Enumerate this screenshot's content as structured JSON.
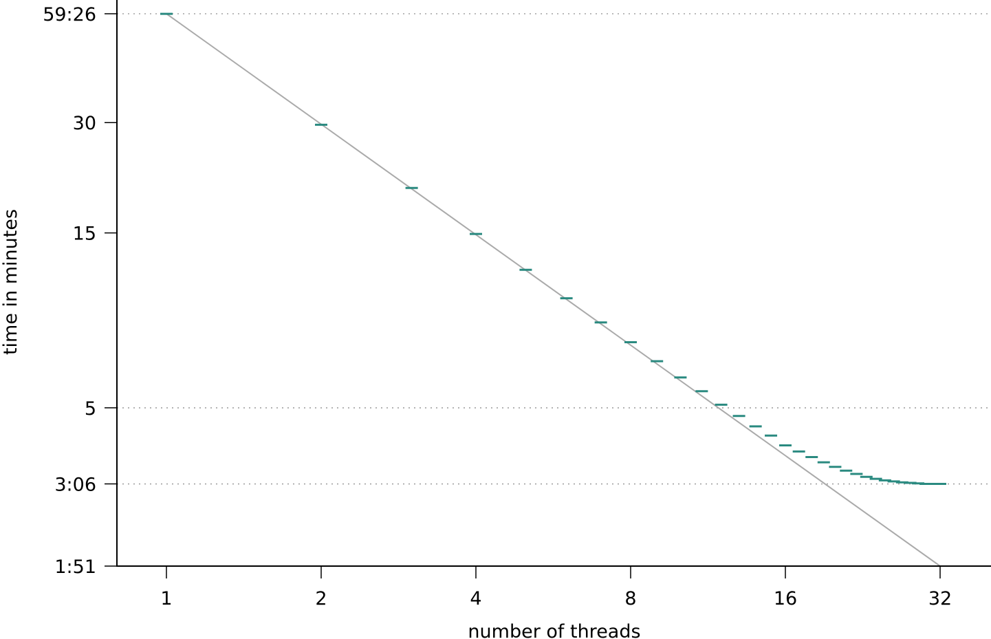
{
  "chart_data": {
    "type": "scatter",
    "xlabel": "number of threads",
    "ylabel": "time in minutes",
    "x_scale": "log2",
    "y_scale": "log",
    "xlim": [
      0.8,
      40
    ],
    "ylim": [
      1.85,
      59.433
    ],
    "x_ticks": [
      {
        "value": 1,
        "label": "1"
      },
      {
        "value": 2,
        "label": "2"
      },
      {
        "value": 4,
        "label": "4"
      },
      {
        "value": 8,
        "label": "8"
      },
      {
        "value": 16,
        "label": "16"
      },
      {
        "value": 32,
        "label": "32"
      }
    ],
    "y_ticks": [
      {
        "value": 59.433,
        "label": "59:26",
        "grid": true
      },
      {
        "value": 30,
        "label": "30",
        "grid": false
      },
      {
        "value": 15,
        "label": "15",
        "grid": false
      },
      {
        "value": 5,
        "label": "5",
        "grid": true
      },
      {
        "value": 3.1,
        "label": "3:06",
        "grid": true
      },
      {
        "value": 1.85,
        "label": "1:51",
        "grid": false
      }
    ],
    "ideal_speedup": {
      "x": [
        1,
        32
      ],
      "y": [
        59.433,
        1.85
      ]
    },
    "series": [
      {
        "color": "#2a8a80",
        "x": [
          1,
          2,
          3,
          4,
          5,
          6,
          7,
          8,
          9,
          10,
          11,
          12,
          13,
          14,
          15,
          16,
          17,
          18,
          19,
          20,
          21,
          22,
          23,
          24,
          25,
          26,
          27,
          28,
          29,
          30,
          31,
          32
        ],
        "y": [
          59.4,
          29.6,
          19.9,
          14.9,
          11.9,
          9.95,
          8.55,
          7.55,
          6.7,
          6.05,
          5.55,
          5.1,
          4.75,
          4.45,
          4.2,
          3.95,
          3.8,
          3.67,
          3.55,
          3.45,
          3.37,
          3.3,
          3.24,
          3.2,
          3.17,
          3.15,
          3.13,
          3.12,
          3.11,
          3.1,
          3.1,
          3.1
        ]
      }
    ]
  }
}
